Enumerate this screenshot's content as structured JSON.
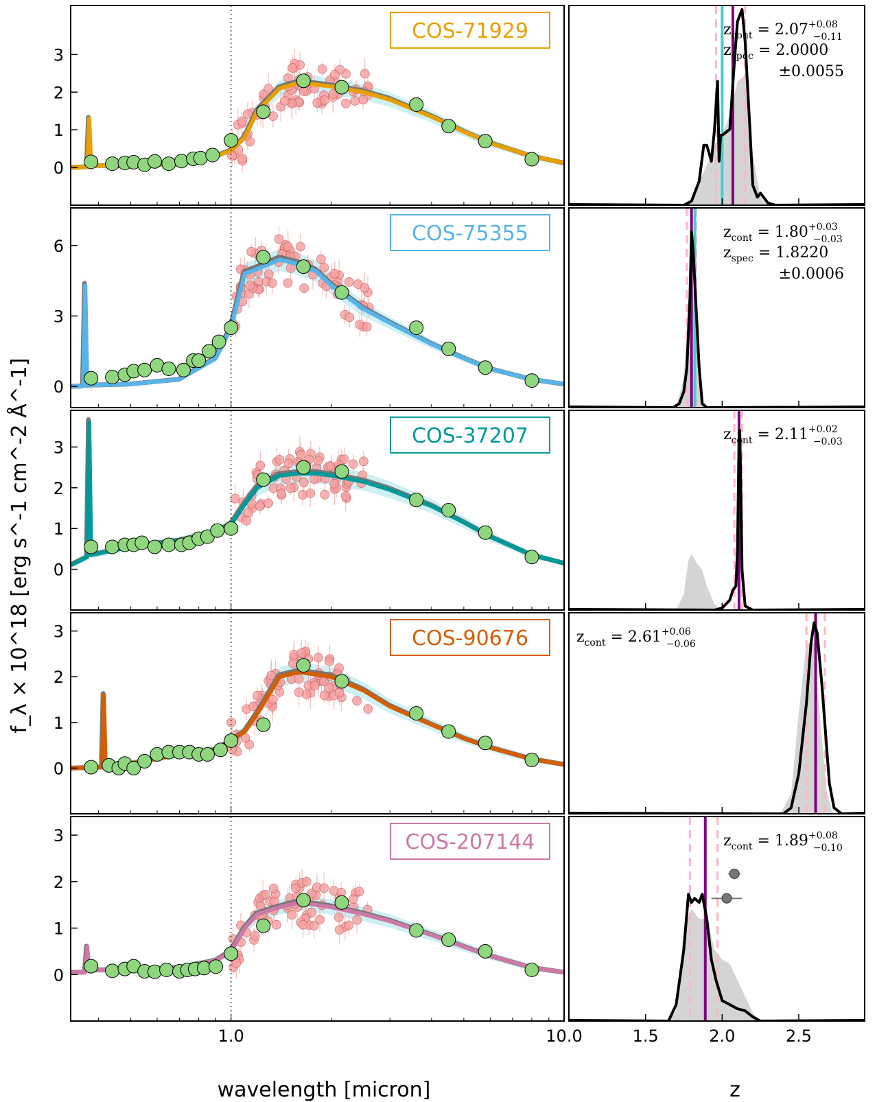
{
  "figure": {
    "ylabel": "f_λ × 10^18 [erg s^-1 cm^-2 Å^-1]",
    "sed_xlabel": "wavelength [micron]",
    "pz_xlabel": "z",
    "sed_xticks": [
      "1.0",
      "10.0"
    ],
    "pz_xticks": [
      "1.5",
      "2.0",
      "2.5"
    ],
    "colors": {
      "model_gray": "#777777",
      "uncert_band": "#a6e4ea",
      "photometry_fill": "#8fd67f",
      "spectrum_points": "#f7a0a0",
      "pz_line": "#000000",
      "pz_shade": "#cccccc",
      "zcont_line": "#800080",
      "zcont_err": "#ffb6c1",
      "zspec_line": "#40d0d0"
    }
  },
  "chart_data": [
    {
      "type": "line",
      "panel": "sed",
      "name": "COS-71929",
      "color": "#e8a000",
      "x_scale": "log",
      "xlim": [
        0.33,
        10.0
      ],
      "ylim": [
        -1.0,
        4.3
      ],
      "yticks": [
        0,
        1,
        2,
        3
      ],
      "photometry": {
        "x": [
          0.38,
          0.44,
          0.48,
          0.51,
          0.55,
          0.59,
          0.65,
          0.71,
          0.77,
          0.81,
          0.88,
          1.0,
          1.25,
          1.65,
          2.15,
          3.6,
          4.5,
          5.8,
          8.0
        ],
        "y": [
          0.15,
          0.1,
          0.12,
          0.14,
          0.07,
          0.16,
          0.1,
          0.17,
          0.23,
          0.25,
          0.33,
          0.72,
          1.48,
          2.3,
          2.13,
          1.67,
          1.1,
          0.7,
          0.22
        ]
      },
      "model": {
        "x": [
          0.33,
          0.37,
          0.375,
          0.38,
          0.5,
          0.7,
          0.9,
          1.0,
          1.1,
          1.2,
          1.4,
          1.6,
          1.8,
          2.0,
          2.5,
          3.0,
          4.0,
          5.0,
          6.0,
          8.0,
          10.0
        ],
        "y": [
          0.0,
          0.02,
          1.3,
          0.05,
          0.05,
          0.1,
          0.3,
          0.45,
          0.8,
          1.5,
          2.1,
          2.25,
          2.2,
          2.15,
          2.0,
          1.8,
          1.35,
          0.95,
          0.65,
          0.3,
          0.12
        ]
      },
      "pz": {
        "zcont": "2.07",
        "zcont_up": "0.08",
        "zcont_lo": "0.11",
        "zspec": "2.0000",
        "zspec_err": "0.0055",
        "zcont_value": 2.07,
        "zcont_err_up": 0.08,
        "zcont_err_lo": 0.11,
        "zspec_value": 2.0,
        "pdf_z": [
          1.75,
          1.8,
          1.85,
          1.88,
          1.9,
          1.93,
          1.95,
          1.97,
          1.98,
          1.99,
          2.0,
          2.05,
          2.08,
          2.1,
          2.13,
          2.15,
          2.18,
          2.2,
          2.23,
          2.25,
          2.3,
          2.35
        ],
        "pdf_p": [
          0.0,
          0.02,
          0.12,
          0.3,
          0.3,
          0.22,
          0.38,
          0.62,
          0.22,
          0.35,
          0.35,
          0.38,
          0.72,
          0.92,
          0.98,
          0.82,
          0.4,
          0.1,
          0.04,
          0.06,
          0.01,
          0.0
        ],
        "shade_z": [
          1.78,
          1.85,
          1.9,
          1.95,
          2.0,
          2.05,
          2.1,
          2.15,
          2.2,
          2.25,
          2.3
        ],
        "shade_p": [
          0.0,
          0.12,
          0.2,
          0.3,
          0.35,
          0.45,
          0.62,
          0.65,
          0.25,
          0.04,
          0.0
        ]
      }
    },
    {
      "type": "line",
      "panel": "sed",
      "name": "COS-75355",
      "color": "#56b4e9",
      "x_scale": "log",
      "xlim": [
        0.33,
        10.0
      ],
      "ylim": [
        -0.9,
        7.6
      ],
      "yticks": [
        0,
        3,
        6
      ],
      "photometry": {
        "x": [
          0.38,
          0.44,
          0.48,
          0.51,
          0.55,
          0.6,
          0.65,
          0.72,
          0.77,
          0.8,
          0.86,
          0.92,
          1.0,
          1.25,
          1.65,
          2.15,
          3.6,
          4.5,
          5.8,
          8.0
        ],
        "y": [
          0.35,
          0.4,
          0.5,
          0.65,
          0.7,
          0.9,
          0.75,
          0.7,
          1.1,
          1.1,
          1.5,
          1.9,
          2.5,
          5.5,
          5.1,
          4.0,
          2.5,
          1.6,
          0.8,
          0.25
        ]
      },
      "model": {
        "x": [
          0.33,
          0.36,
          0.365,
          0.37,
          0.5,
          0.7,
          0.9,
          1.0,
          1.1,
          1.2,
          1.4,
          1.6,
          1.8,
          2.0,
          2.5,
          3.0,
          4.0,
          5.0,
          6.0,
          8.0,
          10.0
        ],
        "y": [
          0.0,
          0.02,
          4.3,
          0.05,
          0.1,
          0.3,
          1.2,
          2.5,
          4.8,
          5.0,
          5.4,
          5.2,
          4.9,
          4.3,
          3.3,
          2.7,
          1.8,
          1.2,
          0.75,
          0.3,
          0.1
        ]
      },
      "pz": {
        "zcont": "1.80",
        "zcont_up": "0.03",
        "zcont_lo": "0.03",
        "zspec": "1.8220",
        "zspec_err": "0.0006",
        "zcont_value": 1.8,
        "zcont_err_up": 0.03,
        "zcont_err_lo": 0.03,
        "zspec_value": 1.822,
        "pdf_z": [
          1.68,
          1.72,
          1.75,
          1.77,
          1.79,
          1.8,
          1.81,
          1.82,
          1.83,
          1.85,
          1.87,
          1.9,
          2.0
        ],
        "pdf_p": [
          0.0,
          0.02,
          0.08,
          0.2,
          0.55,
          0.88,
          0.8,
          0.65,
          0.5,
          0.2,
          0.02,
          0.0,
          0.0
        ],
        "shade_z": [
          1.7,
          1.75,
          1.78,
          1.8,
          1.82,
          1.85,
          1.88
        ],
        "shade_p": [
          0.0,
          0.15,
          0.55,
          0.6,
          0.45,
          0.1,
          0.0
        ]
      }
    },
    {
      "type": "line",
      "panel": "sed",
      "name": "COS-37207",
      "color": "#009999",
      "x_scale": "log",
      "xlim": [
        0.33,
        10.0
      ],
      "ylim": [
        -1.0,
        3.9
      ],
      "yticks": [
        0,
        1,
        2,
        3
      ],
      "photometry": {
        "x": [
          0.38,
          0.44,
          0.48,
          0.51,
          0.54,
          0.59,
          0.65,
          0.71,
          0.75,
          0.8,
          0.85,
          0.91,
          1.0,
          1.25,
          1.65,
          2.15,
          3.6,
          4.5,
          5.8,
          8.0
        ],
        "y": [
          0.55,
          0.55,
          0.6,
          0.6,
          0.65,
          0.55,
          0.6,
          0.6,
          0.65,
          0.75,
          0.8,
          0.95,
          1.0,
          2.2,
          2.5,
          2.4,
          1.7,
          1.45,
          0.9,
          0.3
        ]
      },
      "model": {
        "x": [
          0.33,
          0.37,
          0.375,
          0.38,
          0.5,
          0.7,
          0.9,
          1.0,
          1.1,
          1.2,
          1.4,
          1.6,
          1.8,
          2.0,
          2.5,
          3.0,
          4.0,
          5.0,
          6.0,
          8.0,
          10.0
        ],
        "y": [
          0.1,
          0.3,
          3.6,
          0.35,
          0.55,
          0.7,
          0.9,
          1.1,
          1.6,
          2.0,
          2.3,
          2.35,
          2.35,
          2.3,
          2.15,
          1.95,
          1.55,
          1.15,
          0.8,
          0.35,
          0.15
        ]
      },
      "pz": {
        "zcont": "2.11",
        "zcont_up": "0.02",
        "zcont_lo": "0.03",
        "zcont_value": 2.11,
        "zcont_err_up": 0.02,
        "zcont_err_lo": 0.03,
        "pdf_z": [
          1.95,
          2.0,
          2.05,
          2.07,
          2.09,
          2.1,
          2.11,
          2.115,
          2.12,
          2.13,
          2.15,
          2.2
        ],
        "pdf_p": [
          0.0,
          0.01,
          0.05,
          0.1,
          0.12,
          0.3,
          0.85,
          0.9,
          0.7,
          0.2,
          0.02,
          0.0
        ],
        "shade_z": [
          1.7,
          1.75,
          1.78,
          1.8,
          1.83,
          1.87,
          1.9,
          1.95,
          2.0
        ],
        "shade_p": [
          0.0,
          0.08,
          0.25,
          0.28,
          0.24,
          0.2,
          0.12,
          0.03,
          0.0
        ]
      }
    },
    {
      "type": "line",
      "panel": "sed",
      "name": "COS-90676",
      "color": "#d55e00",
      "x_scale": "log",
      "xlim": [
        0.33,
        10.0
      ],
      "ylim": [
        -1.0,
        3.4
      ],
      "yticks": [
        0,
        1,
        2,
        3
      ],
      "photometry": {
        "x": [
          0.38,
          0.43,
          0.46,
          0.48,
          0.51,
          0.55,
          0.6,
          0.65,
          0.7,
          0.75,
          0.8,
          0.85,
          0.93,
          1.0,
          1.25,
          1.65,
          2.15,
          3.6,
          4.5,
          5.8,
          8.0
        ],
        "y": [
          0.02,
          0.06,
          0.0,
          0.1,
          0.0,
          0.15,
          0.3,
          0.35,
          0.35,
          0.35,
          0.3,
          0.3,
          0.4,
          0.6,
          0.95,
          2.25,
          1.9,
          1.2,
          0.8,
          0.55,
          0.18
        ]
      },
      "model": {
        "x": [
          0.33,
          0.41,
          0.415,
          0.42,
          0.5,
          0.7,
          0.9,
          1.0,
          1.1,
          1.2,
          1.4,
          1.6,
          1.8,
          2.0,
          2.5,
          3.0,
          4.0,
          5.0,
          6.0,
          8.0,
          10.0
        ],
        "y": [
          0.0,
          0.02,
          1.6,
          0.05,
          0.1,
          0.3,
          0.4,
          0.6,
          0.8,
          1.2,
          2.0,
          2.1,
          2.05,
          2.0,
          1.7,
          1.35,
          0.95,
          0.65,
          0.45,
          0.2,
          0.08
        ]
      },
      "pz": {
        "zcont": "2.61",
        "zcont_up": "0.06",
        "zcont_lo": "0.06",
        "zcont_value": 2.61,
        "zcont_err_up": 0.06,
        "zcont_err_lo": 0.06,
        "pdf_z": [
          2.4,
          2.45,
          2.5,
          2.55,
          2.58,
          2.6,
          2.62,
          2.65,
          2.68,
          2.7,
          2.73,
          2.78
        ],
        "pdf_p": [
          0.0,
          0.03,
          0.2,
          0.55,
          0.85,
          0.95,
          0.9,
          0.65,
          0.35,
          0.15,
          0.03,
          0.0
        ],
        "shade_z": [
          2.38,
          2.45,
          2.5,
          2.55,
          2.6,
          2.63,
          2.68,
          2.72
        ],
        "shade_p": [
          0.0,
          0.1,
          0.5,
          0.85,
          0.85,
          0.55,
          0.12,
          0.0
        ]
      }
    },
    {
      "type": "line",
      "panel": "sed",
      "name": "COS-207144",
      "color": "#cc79a7",
      "x_scale": "log",
      "xlim": [
        0.33,
        10.0
      ],
      "ylim": [
        -1.0,
        3.4
      ],
      "yticks": [
        0,
        1,
        2,
        3
      ],
      "photometry": {
        "x": [
          0.38,
          0.44,
          0.48,
          0.51,
          0.55,
          0.59,
          0.64,
          0.7,
          0.74,
          0.78,
          0.83,
          0.9,
          1.0,
          1.25,
          1.65,
          2.15,
          3.6,
          4.5,
          5.8,
          8.0
        ],
        "y": [
          0.18,
          0.08,
          0.12,
          0.18,
          0.07,
          0.06,
          0.1,
          0.07,
          0.1,
          0.12,
          0.14,
          0.17,
          0.45,
          1.05,
          1.6,
          1.55,
          0.95,
          0.75,
          0.5,
          0.1
        ]
      },
      "model": {
        "x": [
          0.33,
          0.365,
          0.37,
          0.375,
          0.5,
          0.7,
          0.9,
          1.0,
          1.1,
          1.2,
          1.4,
          1.6,
          1.8,
          2.0,
          2.5,
          3.0,
          4.0,
          5.0,
          6.0,
          8.0,
          10.0
        ],
        "y": [
          0.05,
          0.05,
          0.6,
          0.1,
          0.1,
          0.15,
          0.3,
          0.5,
          1.0,
          1.3,
          1.45,
          1.55,
          1.5,
          1.45,
          1.3,
          1.15,
          0.85,
          0.6,
          0.4,
          0.15,
          0.05
        ]
      },
      "pz": {
        "zcont": "1.89",
        "zcont_up": "0.08",
        "zcont_lo": "0.10",
        "zcont_value": 1.89,
        "zcont_err_up": 0.08,
        "zcont_err_lo": 0.1,
        "pdf_z": [
          1.65,
          1.7,
          1.75,
          1.78,
          1.8,
          1.82,
          1.85,
          1.87,
          1.9,
          1.93,
          1.96,
          2.0,
          2.05,
          2.1,
          2.15,
          2.2,
          2.25
        ],
        "pdf_p": [
          0.0,
          0.08,
          0.35,
          0.62,
          0.58,
          0.6,
          0.58,
          0.62,
          0.5,
          0.3,
          0.2,
          0.1,
          0.08,
          0.06,
          0.05,
          0.02,
          0.0
        ],
        "shade_z": [
          1.65,
          1.7,
          1.75,
          1.8,
          1.85,
          1.9,
          1.95,
          2.0,
          2.05,
          2.1,
          2.15,
          2.2,
          2.25
        ],
        "shade_p": [
          0.0,
          0.05,
          0.45,
          0.55,
          0.5,
          0.5,
          0.35,
          0.3,
          0.28,
          0.2,
          0.12,
          0.04,
          0.0
        ],
        "extra_points": [
          {
            "z": 2.08,
            "y": 0.72,
            "xerr": 0.04
          },
          {
            "z": 2.03,
            "y": 0.6,
            "xerr": 0.1
          }
        ]
      }
    }
  ]
}
